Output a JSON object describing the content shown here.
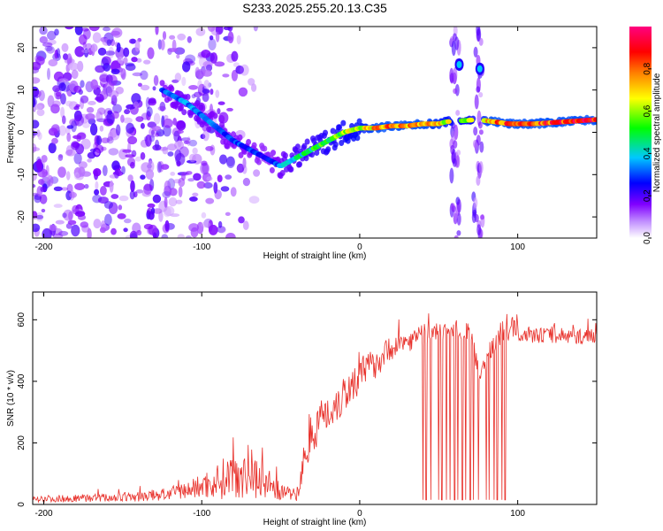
{
  "title": "S233.2025.255.20.13.C35",
  "chart_data": [
    {
      "type": "heatmap",
      "name": "spectrogram",
      "xlabel": "Height of straight line (km)",
      "ylabel": "Frequency (Hz)",
      "xlim": [
        -207,
        150
      ],
      "ylim": [
        -25,
        25
      ],
      "xticks": [
        "-200",
        "-100",
        "0",
        "100"
      ],
      "xtick_values": [
        -200,
        -100,
        0,
        100
      ],
      "yticks": [
        "20",
        "10",
        "0",
        "-10",
        "-20"
      ],
      "ytick_values": [
        20,
        10,
        0,
        -10,
        -20
      ],
      "colorbar": {
        "label": "Normalized spectral amplitude",
        "range": [
          0,
          1
        ],
        "ticks": [
          "0.0",
          "0.2",
          "0.4",
          "0.6",
          "0.8"
        ],
        "tick_values": [
          0.0,
          0.2,
          0.4,
          0.6,
          0.8
        ],
        "colors": [
          "#ffffff",
          "#8000ff",
          "#0000ff",
          "#00c8ff",
          "#00ff00",
          "#ffff00",
          "#ff8000",
          "#ff0000",
          "#ff0080"
        ]
      },
      "ridge": {
        "x": [
          -125,
          -110,
          -100,
          -90,
          -80,
          -70,
          -60,
          -50,
          -45,
          -40,
          -30,
          -20,
          -10,
          0,
          10,
          20,
          30,
          40,
          50,
          55,
          75,
          85,
          95,
          110,
          130,
          150
        ],
        "y": [
          10,
          7,
          4,
          1,
          -2,
          -4,
          -6,
          -8,
          -7,
          -6,
          -4,
          -2,
          0,
          1,
          1,
          1.5,
          1.5,
          2,
          2,
          2.5,
          3,
          2.5,
          2,
          2,
          2.5,
          3
        ],
        "amplitude": [
          0.3,
          0.35,
          0.35,
          0.3,
          0.3,
          0.3,
          0.25,
          0.35,
          0.4,
          0.45,
          0.5,
          0.55,
          0.6,
          0.65,
          0.75,
          0.8,
          0.8,
          0.75,
          0.7,
          0.65,
          0.6,
          0.8,
          0.85,
          0.85,
          0.9,
          0.95
        ]
      },
      "gap_columns_x": [
        [
          58,
          63
        ],
        [
          72,
          78
        ]
      ],
      "side_bands": [
        {
          "x": 63,
          "y": 16
        },
        {
          "x": 76,
          "y": 15
        }
      ],
      "noise_region_x": [
        -207,
        -100
      ]
    },
    {
      "type": "line",
      "name": "snr",
      "xlabel": "Height of straight line (km)",
      "ylabel": "SNR (10 * v/v)",
      "xlim": [
        -207,
        150
      ],
      "ylim": [
        0,
        690
      ],
      "xticks": [
        "-200",
        "-100",
        "0",
        "100"
      ],
      "xtick_values": [
        -200,
        -100,
        0,
        100
      ],
      "yticks": [
        "0",
        "200",
        "400",
        "600"
      ],
      "ytick_values": [
        0,
        200,
        400,
        600
      ],
      "color": "#e8302a",
      "series": [
        {
          "name": "SNR",
          "x": [
            -207,
            -200,
            -180,
            -160,
            -140,
            -120,
            -110,
            -100,
            -90,
            -80,
            -70,
            -60,
            -50,
            -40,
            -38,
            -35,
            -30,
            -20,
            -10,
            0,
            10,
            20,
            30,
            40,
            50,
            60,
            70,
            75,
            80,
            85,
            90,
            95,
            100,
            110,
            120,
            130,
            140,
            150
          ],
          "y": [
            20,
            18,
            20,
            22,
            25,
            35,
            45,
            60,
            75,
            100,
            110,
            75,
            40,
            30,
            60,
            150,
            240,
            300,
            360,
            420,
            460,
            510,
            530,
            550,
            560,
            570,
            560,
            430,
            460,
            530,
            560,
            580,
            560,
            550,
            550,
            545,
            545,
            550
          ],
          "spread": [
            12,
            12,
            12,
            14,
            16,
            22,
            28,
            40,
            60,
            80,
            90,
            60,
            25,
            20,
            40,
            60,
            70,
            70,
            70,
            60,
            50,
            40,
            35,
            35,
            30,
            30,
            30,
            30,
            35,
            35,
            40,
            50,
            30,
            25,
            25,
            25,
            25,
            25
          ]
        }
      ],
      "dropouts_x": [
        40,
        42,
        45,
        50,
        52,
        55,
        57,
        60,
        62,
        65,
        67,
        70,
        72,
        75,
        80,
        82,
        85,
        87,
        90,
        92
      ]
    }
  ]
}
